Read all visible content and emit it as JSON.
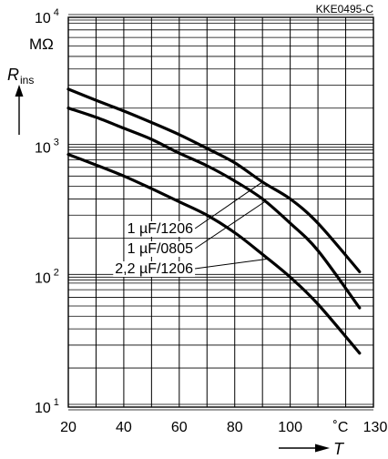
{
  "chart_data": {
    "type": "line",
    "code": "KKE0495-C",
    "ylabel": {
      "symbol": "R",
      "subscript": "ins",
      "unit": "MΩ"
    },
    "xlabel": {
      "symbol": "T",
      "unit": "˚C"
    },
    "xlim": [
      20,
      130
    ],
    "x_ticks": [
      20,
      40,
      60,
      80,
      100,
      130
    ],
    "y_scale": "log",
    "ylim": [
      10,
      10000
    ],
    "y_ticks": [
      {
        "base": "10",
        "exp": "1"
      },
      {
        "base": "10",
        "exp": "2"
      },
      {
        "base": "10",
        "exp": "3"
      },
      {
        "base": "10",
        "exp": "4"
      }
    ],
    "grid": true,
    "series": [
      {
        "name": "1 µF/1206",
        "x": [
          20,
          30,
          40,
          50,
          60,
          70,
          80,
          90,
          100,
          110,
          125
        ],
        "y": [
          2800,
          2300,
          1900,
          1550,
          1250,
          980,
          760,
          540,
          400,
          260,
          110
        ]
      },
      {
        "name": "1 µF/0805",
        "x": [
          20,
          30,
          40,
          50,
          60,
          70,
          80,
          90,
          100,
          110,
          125
        ],
        "y": [
          2000,
          1700,
          1400,
          1150,
          900,
          720,
          550,
          400,
          260,
          160,
          58
        ]
      },
      {
        "name": "2,2 µF/1206",
        "x": [
          20,
          30,
          40,
          50,
          60,
          70,
          80,
          90,
          100,
          110,
          125
        ],
        "y": [
          880,
          730,
          600,
          480,
          380,
          300,
          220,
          150,
          100,
          62,
          26
        ]
      }
    ]
  }
}
